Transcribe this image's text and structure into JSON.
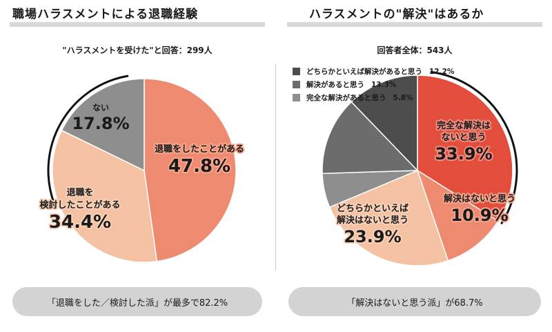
{
  "colors": {
    "gray_dark": "#4d4d4d",
    "gray_mid": "#6c6c6c",
    "gray_light": "#8e8e8e",
    "red": "#e34d3c",
    "salmon": "#ee8a6f",
    "peach": "#f4c1a2",
    "title_bar": "#d9d9d9",
    "footer_bg": "#d3d3d3"
  },
  "left": {
    "title": "職場ハラスメントによる退職経験",
    "subtitle": "\"ハラスメントを受けた\"と回答：299人",
    "footer": "「退職をした／検討した派」が最多で82.2%"
  },
  "right": {
    "title": "ハラスメントの\"解決\"はあるか",
    "subtitle": "回答者全体：543人",
    "footer": "「解決はないと思う派」が68.7%"
  },
  "chart_data": [
    {
      "type": "pie",
      "title": "職場ハラスメントによる退職経験",
      "subtitle": "\"ハラスメントを受けた\"と回答：299人",
      "slices": [
        {
          "label": "退職をしたことがある",
          "value": 47.8,
          "display": "47.8%",
          "color": "#ee8a6f"
        },
        {
          "label": "退職を検討したことがある",
          "value": 34.4,
          "display": "34.4%",
          "color": "#f4c1a2"
        },
        {
          "label": "ない",
          "value": 17.8,
          "display": "17.8%",
          "color": "#8e8e8e"
        }
      ]
    },
    {
      "type": "pie",
      "title": "ハラスメントの\"解決\"はあるか",
      "subtitle": "回答者全体：543人",
      "slices": [
        {
          "label": "完全な解決はないと思う",
          "value": 33.9,
          "display": "33.9%",
          "color": "#e34d3c"
        },
        {
          "label": "解決はないと思う",
          "value": 10.9,
          "display": "10.9%",
          "color": "#ee8a6f"
        },
        {
          "label": "どちらかといえば解決はないと思う",
          "value": 23.9,
          "display": "23.9%",
          "color": "#f4c1a2"
        },
        {
          "label": "完全な解決があると思う",
          "value": 5.8,
          "display": "5.8%",
          "color": "#8e8e8e"
        },
        {
          "label": "解決があると思う",
          "value": 13.3,
          "display": "13.3%",
          "color": "#6c6c6c"
        },
        {
          "label": "どちらかといえば解決があると思う",
          "value": 12.2,
          "display": "12.2%",
          "color": "#4d4d4d"
        }
      ],
      "legend": [
        {
          "label": "どちらかといえば解決があると思う",
          "value": "12.2%",
          "color": "#4d4d4d"
        },
        {
          "label": "解決があると思う",
          "value": "13.3%",
          "color": "#6c6c6c"
        },
        {
          "label": "完全な解決があると思う",
          "value": "5.8%",
          "color": "#8e8e8e"
        }
      ],
      "legend_position": "top-left"
    }
  ]
}
